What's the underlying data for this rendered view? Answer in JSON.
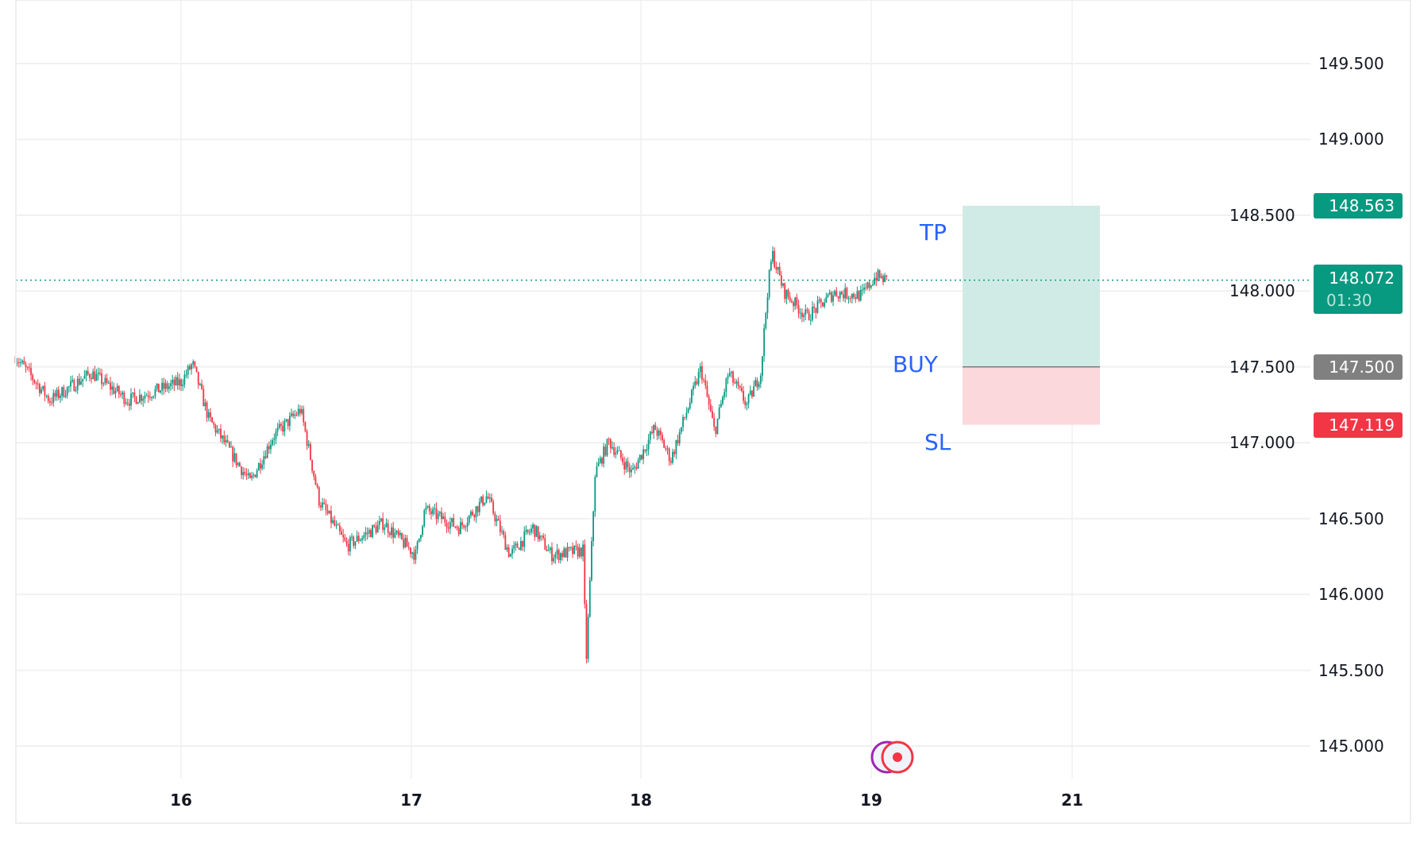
{
  "chart_data": {
    "type": "candlestick",
    "y_ticks": [
      "149.500",
      "149.000",
      "148.500",
      "148.000",
      "147.500",
      "147.000",
      "146.500",
      "146.000",
      "145.500",
      "145.000"
    ],
    "ylim": [
      144.8,
      149.75
    ],
    "x_ticks": [
      "16",
      "17",
      "18",
      "19",
      "21"
    ],
    "grid": true,
    "colors": {
      "up": "#089981",
      "down": "#f23645",
      "tp_fill": "#d0ebe5",
      "sl_fill": "#fbd8db",
      "accent": "#2962ff",
      "entry": "#808080"
    },
    "approx_path": [
      [
        15.28,
        147.57
      ],
      [
        15.43,
        147.28
      ],
      [
        15.61,
        147.46
      ],
      [
        15.77,
        147.28
      ],
      [
        16.0,
        147.4
      ],
      [
        16.05,
        147.52
      ],
      [
        16.12,
        147.16
      ],
      [
        16.3,
        146.74
      ],
      [
        16.4,
        147.04
      ],
      [
        16.52,
        147.22
      ],
      [
        16.6,
        146.62
      ],
      [
        16.72,
        146.32
      ],
      [
        16.88,
        146.47
      ],
      [
        17.02,
        146.26
      ],
      [
        17.06,
        146.56
      ],
      [
        17.21,
        146.44
      ],
      [
        17.33,
        146.65
      ],
      [
        17.43,
        146.26
      ],
      [
        17.53,
        146.44
      ],
      [
        17.61,
        146.26
      ],
      [
        17.75,
        146.29
      ],
      [
        17.76,
        145.51
      ],
      [
        17.8,
        146.8
      ],
      [
        17.86,
        147.01
      ],
      [
        17.96,
        146.8
      ],
      [
        18.06,
        147.1
      ],
      [
        18.13,
        146.89
      ],
      [
        18.26,
        147.49
      ],
      [
        18.32,
        147.07
      ],
      [
        18.38,
        147.46
      ],
      [
        18.46,
        147.25
      ],
      [
        18.52,
        147.46
      ],
      [
        18.55,
        148.0
      ],
      [
        18.57,
        148.25
      ],
      [
        18.62,
        148.0
      ],
      [
        18.72,
        147.83
      ],
      [
        18.84,
        147.99
      ],
      [
        18.96,
        147.97
      ],
      [
        19.02,
        148.1
      ],
      [
        19.07,
        148.07
      ]
    ],
    "position": {
      "tp_label": "TP",
      "entry_label": "BUY",
      "sl_label": "SL",
      "tp": "148.563",
      "entry": "147.500",
      "sl": "147.119"
    },
    "last_price": "148.072",
    "countdown": "01:30"
  }
}
